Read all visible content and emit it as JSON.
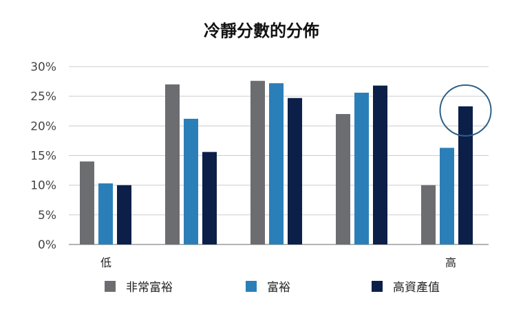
{
  "chart_data": {
    "type": "bar",
    "title": "冷靜分數的分佈",
    "categories": [
      "",
      "",
      "",
      "",
      ""
    ],
    "axis_labels": {
      "low": "低",
      "high": "高"
    },
    "series": [
      {
        "name": "非常富裕",
        "color": "#6b6d70",
        "values": [
          14,
          27,
          27.6,
          22,
          10
        ]
      },
      {
        "name": "富裕",
        "color": "#2b7fb8",
        "values": [
          10.3,
          21.2,
          27.2,
          25.6,
          16.3
        ]
      },
      {
        "name": "高資產值",
        "color": "#0b1f48",
        "values": [
          10,
          15.6,
          24.7,
          26.8,
          23.3
        ]
      }
    ],
    "ylim": [
      0,
      30
    ],
    "yticks": [
      0,
      5,
      10,
      15,
      20,
      25,
      30
    ],
    "ytick_labels": [
      "0%",
      "5%",
      "10%",
      "15%",
      "20%",
      "25%",
      "30%"
    ],
    "grid": true,
    "legend_position": "bottom",
    "annotation": {
      "type": "circle",
      "series": 2,
      "category": 4
    },
    "annotation_color": "#2e5f86"
  }
}
